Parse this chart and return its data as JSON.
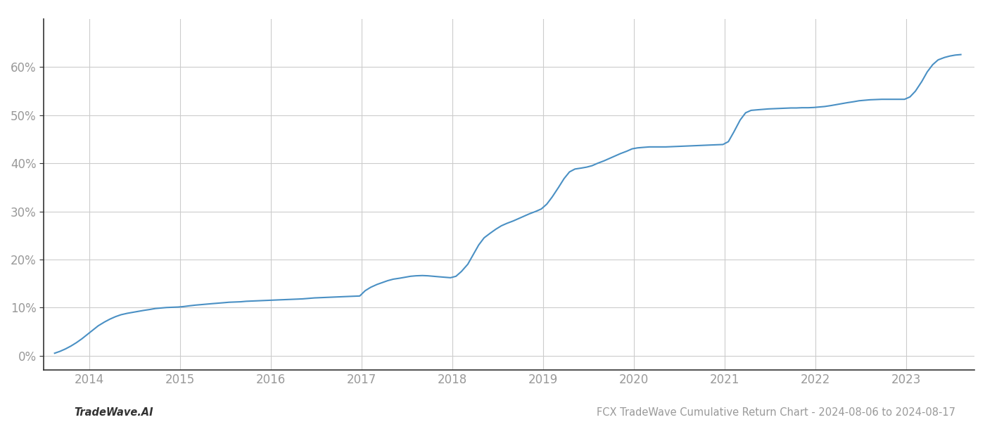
{
  "title": "",
  "footer_left": "TradeWave.AI",
  "footer_right": "FCX TradeWave Cumulative Return Chart - 2024-08-06 to 2024-08-17",
  "line_color": "#4a90c4",
  "background_color": "#ffffff",
  "grid_color": "#cccccc",
  "x_years": [
    2014,
    2015,
    2016,
    2017,
    2018,
    2019,
    2020,
    2021,
    2022,
    2023
  ],
  "x_data": [
    2013.62,
    2013.68,
    2013.74,
    2013.8,
    2013.86,
    2013.92,
    2013.98,
    2014.04,
    2014.1,
    2014.17,
    2014.23,
    2014.29,
    2014.35,
    2014.42,
    2014.48,
    2014.54,
    2014.6,
    2014.67,
    2014.73,
    2014.79,
    2014.85,
    2014.92,
    2014.98,
    2015.04,
    2015.1,
    2015.17,
    2015.23,
    2015.29,
    2015.35,
    2015.42,
    2015.48,
    2015.54,
    2015.6,
    2015.67,
    2015.73,
    2015.79,
    2015.85,
    2015.92,
    2015.98,
    2016.04,
    2016.1,
    2016.17,
    2016.23,
    2016.29,
    2016.35,
    2016.42,
    2016.48,
    2016.54,
    2016.6,
    2016.67,
    2016.73,
    2016.79,
    2016.85,
    2016.92,
    2016.98,
    2017.04,
    2017.1,
    2017.17,
    2017.23,
    2017.29,
    2017.35,
    2017.42,
    2017.48,
    2017.54,
    2017.6,
    2017.67,
    2017.73,
    2017.79,
    2017.85,
    2017.92,
    2017.98,
    2018.04,
    2018.1,
    2018.17,
    2018.23,
    2018.29,
    2018.35,
    2018.42,
    2018.48,
    2018.54,
    2018.6,
    2018.67,
    2018.73,
    2018.79,
    2018.85,
    2018.92,
    2018.98,
    2019.04,
    2019.1,
    2019.17,
    2019.23,
    2019.29,
    2019.35,
    2019.42,
    2019.48,
    2019.54,
    2019.6,
    2019.67,
    2019.73,
    2019.79,
    2019.85,
    2019.92,
    2019.98,
    2020.04,
    2020.1,
    2020.17,
    2020.23,
    2020.29,
    2020.35,
    2020.42,
    2020.48,
    2020.54,
    2020.6,
    2020.67,
    2020.73,
    2020.79,
    2020.85,
    2020.92,
    2020.98,
    2021.04,
    2021.1,
    2021.17,
    2021.23,
    2021.29,
    2021.35,
    2021.42,
    2021.48,
    2021.54,
    2021.6,
    2021.67,
    2021.73,
    2021.79,
    2021.85,
    2021.92,
    2021.98,
    2022.04,
    2022.1,
    2022.17,
    2022.23,
    2022.29,
    2022.35,
    2022.42,
    2022.48,
    2022.54,
    2022.6,
    2022.67,
    2022.73,
    2022.79,
    2022.85,
    2022.92,
    2022.98,
    2023.04,
    2023.1,
    2023.17,
    2023.23,
    2023.29,
    2023.35,
    2023.42,
    2023.48,
    2023.54,
    2023.6
  ],
  "y_data": [
    0.5,
    0.9,
    1.4,
    2.0,
    2.7,
    3.5,
    4.4,
    5.3,
    6.2,
    7.0,
    7.6,
    8.1,
    8.5,
    8.8,
    9.0,
    9.2,
    9.4,
    9.6,
    9.8,
    9.9,
    10.0,
    10.05,
    10.1,
    10.2,
    10.35,
    10.5,
    10.6,
    10.7,
    10.8,
    10.9,
    11.0,
    11.1,
    11.15,
    11.2,
    11.3,
    11.35,
    11.4,
    11.45,
    11.5,
    11.55,
    11.6,
    11.65,
    11.7,
    11.75,
    11.8,
    11.9,
    12.0,
    12.05,
    12.1,
    12.15,
    12.2,
    12.25,
    12.3,
    12.35,
    12.4,
    13.5,
    14.2,
    14.8,
    15.2,
    15.6,
    15.9,
    16.1,
    16.3,
    16.5,
    16.6,
    16.65,
    16.6,
    16.5,
    16.4,
    16.3,
    16.2,
    16.5,
    17.5,
    19.0,
    21.0,
    23.0,
    24.5,
    25.5,
    26.3,
    27.0,
    27.5,
    28.0,
    28.5,
    29.0,
    29.5,
    30.0,
    30.5,
    31.5,
    33.0,
    35.0,
    36.8,
    38.2,
    38.8,
    39.0,
    39.2,
    39.5,
    40.0,
    40.5,
    41.0,
    41.5,
    42.0,
    42.5,
    43.0,
    43.2,
    43.3,
    43.4,
    43.4,
    43.4,
    43.4,
    43.45,
    43.5,
    43.55,
    43.6,
    43.65,
    43.7,
    43.75,
    43.8,
    43.85,
    43.9,
    44.5,
    46.5,
    49.0,
    50.5,
    51.0,
    51.1,
    51.2,
    51.3,
    51.35,
    51.4,
    51.45,
    51.5,
    51.5,
    51.55,
    51.55,
    51.6,
    51.7,
    51.8,
    52.0,
    52.2,
    52.4,
    52.6,
    52.8,
    53.0,
    53.1,
    53.2,
    53.25,
    53.3,
    53.3,
    53.3,
    53.3,
    53.3,
    53.8,
    55.0,
    57.0,
    59.0,
    60.5,
    61.5,
    62.0,
    62.3,
    62.5,
    62.6
  ],
  "ylim": [
    -3,
    70
  ],
  "yticks": [
    0,
    10,
    20,
    30,
    40,
    50,
    60
  ],
  "xlim": [
    2013.5,
    2023.75
  ],
  "line_width": 1.5,
  "footer_fontsize": 10.5,
  "tick_fontsize": 12,
  "tick_color": "#999999",
  "spine_color": "#333333"
}
